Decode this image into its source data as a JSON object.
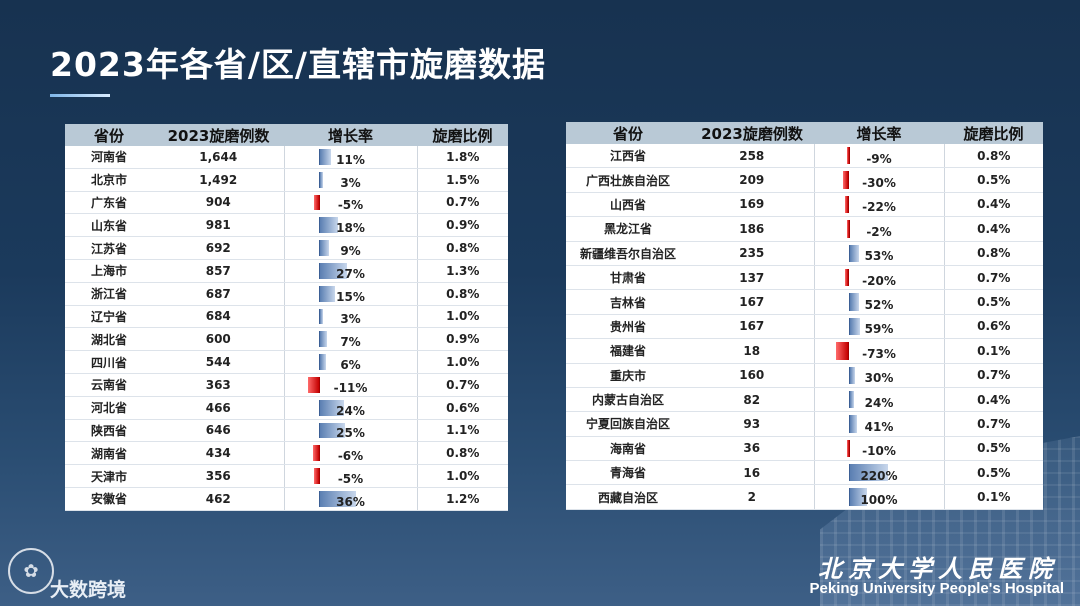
{
  "slide": {
    "title": "2023年各省/区/直辖市旋磨数据",
    "watermark": "大数跨境",
    "logo_icon": "pku-seal-icon",
    "hospital_cn": "北京大学人民医院",
    "hospital_en": "Peking University People's Hospital"
  },
  "colors": {
    "positive_bar": "#5b7fb2",
    "negative_bar": "#d40000",
    "header_bg": "#b9c9d6"
  },
  "table_headers": [
    "省份",
    "2023旋磨例数",
    "增长率",
    "旋磨比例"
  ],
  "chart_data": [
    {
      "type": "table",
      "columns": [
        "省份",
        "2023旋磨例数",
        "增长率",
        "旋磨比例"
      ],
      "rows": [
        {
          "province": "河南省",
          "cases": "1,644",
          "growth": 11,
          "growth_label": "11%",
          "ratio": "1.8%"
        },
        {
          "province": "北京市",
          "cases": "1,492",
          "growth": 3,
          "growth_label": "3%",
          "ratio": "1.5%"
        },
        {
          "province": "广东省",
          "cases": "904",
          "growth": -5,
          "growth_label": "-5%",
          "ratio": "0.7%"
        },
        {
          "province": "山东省",
          "cases": "981",
          "growth": 18,
          "growth_label": "18%",
          "ratio": "0.9%"
        },
        {
          "province": "江苏省",
          "cases": "692",
          "growth": 9,
          "growth_label": "9%",
          "ratio": "0.8%"
        },
        {
          "province": "上海市",
          "cases": "857",
          "growth": 27,
          "growth_label": "27%",
          "ratio": "1.3%"
        },
        {
          "province": "浙江省",
          "cases": "687",
          "growth": 15,
          "growth_label": "15%",
          "ratio": "0.8%"
        },
        {
          "province": "辽宁省",
          "cases": "684",
          "growth": 3,
          "growth_label": "3%",
          "ratio": "1.0%"
        },
        {
          "province": "湖北省",
          "cases": "600",
          "growth": 7,
          "growth_label": "7%",
          "ratio": "0.9%"
        },
        {
          "province": "四川省",
          "cases": "544",
          "growth": 6,
          "growth_label": "6%",
          "ratio": "1.0%"
        },
        {
          "province": "云南省",
          "cases": "363",
          "growth": -11,
          "growth_label": "-11%",
          "ratio": "0.7%"
        },
        {
          "province": "河北省",
          "cases": "466",
          "growth": 24,
          "growth_label": "24%",
          "ratio": "0.6%"
        },
        {
          "province": "陕西省",
          "cases": "646",
          "growth": 25,
          "growth_label": "25%",
          "ratio": "1.1%"
        },
        {
          "province": "湖南省",
          "cases": "434",
          "growth": -6,
          "growth_label": "-6%",
          "ratio": "0.8%"
        },
        {
          "province": "天津市",
          "cases": "356",
          "growth": -5,
          "growth_label": "-5%",
          "ratio": "1.0%"
        },
        {
          "province": "安徽省",
          "cases": "462",
          "growth": 36,
          "growth_label": "36%",
          "ratio": "1.2%"
        }
      ]
    },
    {
      "type": "table",
      "columns": [
        "省份",
        "2023旋磨例数",
        "增长率",
        "旋磨比例"
      ],
      "rows": [
        {
          "province": "江西省",
          "cases": "258",
          "growth": -9,
          "growth_label": "-9%",
          "ratio": "0.8%"
        },
        {
          "province": "广西壮族自治区",
          "cases": "209",
          "growth": -30,
          "growth_label": "-30%",
          "ratio": "0.5%"
        },
        {
          "province": "山西省",
          "cases": "169",
          "growth": -22,
          "growth_label": "-22%",
          "ratio": "0.4%"
        },
        {
          "province": "黑龙江省",
          "cases": "186",
          "growth": -2,
          "growth_label": "-2%",
          "ratio": "0.4%"
        },
        {
          "province": "新疆维吾尔自治区",
          "cases": "235",
          "growth": 53,
          "growth_label": "53%",
          "ratio": "0.8%"
        },
        {
          "province": "甘肃省",
          "cases": "137",
          "growth": -20,
          "growth_label": "-20%",
          "ratio": "0.7%"
        },
        {
          "province": "吉林省",
          "cases": "167",
          "growth": 52,
          "growth_label": "52%",
          "ratio": "0.5%"
        },
        {
          "province": "贵州省",
          "cases": "167",
          "growth": 59,
          "growth_label": "59%",
          "ratio": "0.6%"
        },
        {
          "province": "福建省",
          "cases": "18",
          "growth": -73,
          "growth_label": "-73%",
          "ratio": "0.1%"
        },
        {
          "province": "重庆市",
          "cases": "160",
          "growth": 30,
          "growth_label": "30%",
          "ratio": "0.7%"
        },
        {
          "province": "内蒙古自治区",
          "cases": "82",
          "growth": 24,
          "growth_label": "24%",
          "ratio": "0.4%"
        },
        {
          "province": "宁夏回族自治区",
          "cases": "93",
          "growth": 41,
          "growth_label": "41%",
          "ratio": "0.7%"
        },
        {
          "province": "海南省",
          "cases": "36",
          "growth": -10,
          "growth_label": "-10%",
          "ratio": "0.5%"
        },
        {
          "province": "青海省",
          "cases": "16",
          "growth": 220,
          "growth_label": "220%",
          "ratio": "0.5%"
        },
        {
          "province": "西藏自治区",
          "cases": "2",
          "growth": 100,
          "growth_label": "100%",
          "ratio": "0.1%"
        }
      ]
    }
  ]
}
